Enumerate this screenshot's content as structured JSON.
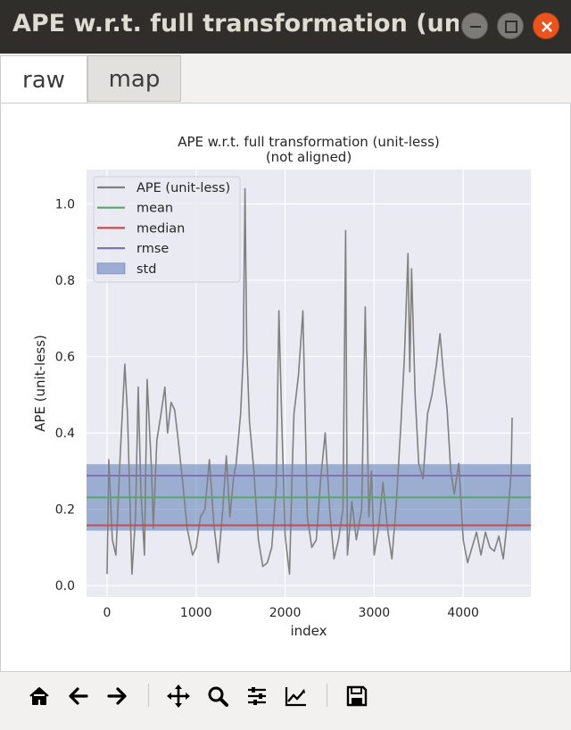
{
  "window": {
    "title": "APE w.r.t. full transformation (un...",
    "buttons": [
      "minimize",
      "maximize",
      "close"
    ]
  },
  "tabs": [
    {
      "label": "raw",
      "selected": true
    },
    {
      "label": "map",
      "selected": false
    }
  ],
  "colors": {
    "titlebar": "#2f2e2b",
    "plot_bg": "#eaeaf2",
    "ape": "#808080",
    "mean": "#55a868",
    "median": "#c44e52",
    "rmse": "#8172b2",
    "std": "#4c72b0",
    "close": "#e9541e"
  },
  "chart_data": {
    "type": "line",
    "title": "APE w.r.t. full transformation (unit-less)\n(not aligned)",
    "title_lines": [
      "APE w.r.t. full transformation (unit-less)",
      "(not aligned)"
    ],
    "xlabel": "index",
    "ylabel": "APE (unit-less)",
    "xlim": [
      -230,
      4760
    ],
    "ylim": [
      -0.03,
      1.09
    ],
    "xticks": [
      0,
      1000,
      2000,
      3000,
      4000
    ],
    "xtick_labels": [
      "0",
      "1000",
      "2000",
      "3000",
      "4000"
    ],
    "yticks": [
      0.0,
      0.2,
      0.4,
      0.6,
      0.8,
      1.0
    ],
    "ytick_labels": [
      "0.0",
      "0.2",
      "0.4",
      "0.6",
      "0.8",
      "1.0"
    ],
    "grid": true,
    "legend_position": "top-left",
    "legend": [
      {
        "label": "APE (unit-less)",
        "kind": "line",
        "color": "#808080"
      },
      {
        "label": "mean",
        "kind": "line",
        "color": "#55a868"
      },
      {
        "label": "median",
        "kind": "line",
        "color": "#c44e52"
      },
      {
        "label": "rmse",
        "kind": "line",
        "color": "#8172b2"
      },
      {
        "label": "std",
        "kind": "patch",
        "color": "#4c72b0"
      }
    ],
    "stats": {
      "mean": 0.231,
      "median": 0.158,
      "rmse": 0.288,
      "std_band": [
        0.144,
        0.318
      ]
    },
    "series": [
      {
        "name": "APE (unit-less)",
        "x": [
          0,
          20,
          60,
          100,
          150,
          200,
          230,
          280,
          320,
          350,
          380,
          420,
          450,
          500,
          520,
          560,
          600,
          650,
          680,
          720,
          760,
          800,
          850,
          900,
          960,
          1000,
          1050,
          1100,
          1150,
          1200,
          1250,
          1300,
          1340,
          1380,
          1420,
          1450,
          1500,
          1530,
          1550,
          1570,
          1600,
          1650,
          1700,
          1750,
          1800,
          1850,
          1900,
          1930,
          1960,
          2000,
          2050,
          2080,
          2100,
          2150,
          2200,
          2250,
          2300,
          2350,
          2400,
          2450,
          2500,
          2550,
          2600,
          2650,
          2680,
          2700,
          2750,
          2800,
          2860,
          2900,
          2940,
          2970,
          3000,
          3050,
          3100,
          3150,
          3200,
          3250,
          3300,
          3340,
          3380,
          3400,
          3420,
          3460,
          3500,
          3550,
          3600,
          3650,
          3700,
          3740,
          3780,
          3820,
          3860,
          3900,
          3950,
          4000,
          4050,
          4100,
          4150,
          4200,
          4250,
          4300,
          4350,
          4400,
          4450,
          4500,
          4540,
          4550
        ],
        "values": [
          0.03,
          0.33,
          0.12,
          0.08,
          0.35,
          0.58,
          0.45,
          0.03,
          0.18,
          0.52,
          0.25,
          0.08,
          0.54,
          0.3,
          0.15,
          0.38,
          0.44,
          0.52,
          0.4,
          0.48,
          0.46,
          0.38,
          0.27,
          0.15,
          0.08,
          0.1,
          0.18,
          0.2,
          0.33,
          0.16,
          0.06,
          0.2,
          0.34,
          0.18,
          0.28,
          0.32,
          0.45,
          0.6,
          1.04,
          0.62,
          0.43,
          0.3,
          0.12,
          0.05,
          0.06,
          0.1,
          0.26,
          0.72,
          0.45,
          0.13,
          0.03,
          0.3,
          0.45,
          0.55,
          0.72,
          0.18,
          0.1,
          0.12,
          0.28,
          0.4,
          0.2,
          0.07,
          0.12,
          0.2,
          0.93,
          0.08,
          0.22,
          0.12,
          0.2,
          0.73,
          0.18,
          0.3,
          0.08,
          0.15,
          0.27,
          0.15,
          0.07,
          0.22,
          0.42,
          0.6,
          0.87,
          0.56,
          0.83,
          0.5,
          0.32,
          0.28,
          0.45,
          0.5,
          0.58,
          0.66,
          0.55,
          0.46,
          0.3,
          0.24,
          0.32,
          0.12,
          0.06,
          0.1,
          0.14,
          0.08,
          0.14,
          0.1,
          0.09,
          0.13,
          0.07,
          0.18,
          0.3,
          0.44
        ]
      }
    ]
  },
  "toolbar": {
    "items": [
      "home-icon",
      "back-icon",
      "forward-icon",
      "pan-icon",
      "zoom-icon",
      "configure-subplots-icon",
      "edit-axis-icon",
      "save-icon"
    ]
  }
}
